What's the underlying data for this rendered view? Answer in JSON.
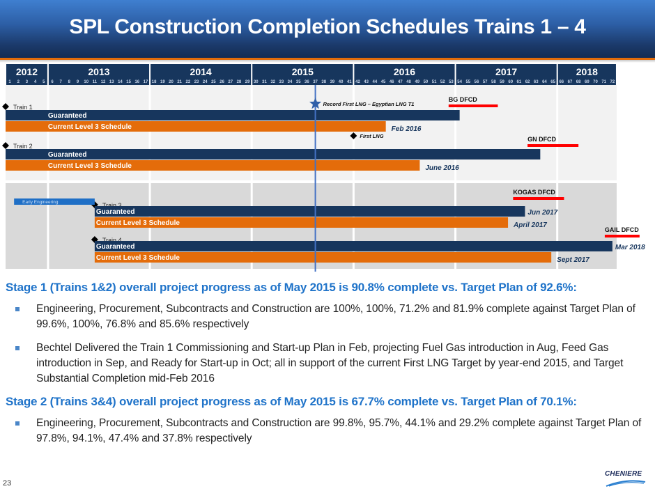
{
  "header": {
    "title": "SPL Construction Completion Schedules Trains 1 – 4"
  },
  "chart_data": {
    "type": "gantt",
    "title": "SPL Construction Completion Schedules Trains 1 – 4",
    "timeline": {
      "month_range": [
        1,
        72
      ],
      "years": [
        {
          "label": "2012",
          "start": 1,
          "end": 5
        },
        {
          "label": "2013",
          "start": 6,
          "end": 17
        },
        {
          "label": "2014",
          "start": 18,
          "end": 29
        },
        {
          "label": "2015",
          "start": 30,
          "end": 41
        },
        {
          "label": "2016",
          "start": 42,
          "end": 53
        },
        {
          "label": "2017",
          "start": 54,
          "end": 65
        },
        {
          "label": "2018",
          "start": 66,
          "end": 72
        }
      ]
    },
    "current_marker": {
      "month": 37.5,
      "label": "Record First LNG – Egyptian LNG T1",
      "icon": "star"
    },
    "sections": [
      {
        "name": "Stage 1",
        "shade": "light",
        "month_start": 1,
        "month_end": 72
      },
      {
        "name": "Stage 2",
        "shade": "dark",
        "month_start": 1,
        "month_end": 72
      }
    ],
    "trains": [
      {
        "name": "Train 1",
        "start": 1,
        "guaranteed": {
          "label": "Guaranteed",
          "end": 54.5
        },
        "current": {
          "label": "Current Level 3 Schedule",
          "end": 45.8,
          "end_label": "Feb 2016"
        },
        "dfcd": {
          "label": "BG DFCD",
          "start": 53.2,
          "end": 59
        }
      },
      {
        "name": "Train 2",
        "start": 1,
        "guaranteed": {
          "label": "Guaranteed",
          "end": 64
        },
        "current": {
          "label": "Current Level 3 Schedule",
          "end": 49.8,
          "end_label": "June 2016"
        },
        "milestone": {
          "label": "First LNG",
          "month": 42
        },
        "dfcd": {
          "label": "GN DFCD",
          "start": 62.5,
          "end": 68.5
        }
      },
      {
        "name": "Train 3",
        "start": 11.5,
        "early_engineering": {
          "label": "Early Engineering",
          "start": 2,
          "end": 11.5
        },
        "guaranteed": {
          "label": "Guaranteed",
          "end": 62.2,
          "end_label": "Jun 2017"
        },
        "current": {
          "label": "Current Level 3 Schedule",
          "end": 60.2,
          "end_label": "April 2017"
        },
        "dfcd": {
          "label": "KOGAS DFCD",
          "start": 60.8,
          "end": 66.8
        }
      },
      {
        "name": "Train 4",
        "start": 11.5,
        "guaranteed": {
          "label": "Guaranteed",
          "end": 72.5,
          "end_label": "Mar 2018"
        },
        "current": {
          "label": "Current Level 3 Schedule",
          "end": 65.3,
          "end_label": "Sept 2017"
        },
        "dfcd": {
          "label": "GAIL DFCD",
          "start": 71.6,
          "end": 75.7
        }
      }
    ],
    "colors": {
      "guaranteed": "#17365d",
      "current": "#e46c0a",
      "dfcd": "#ff0000",
      "early": "#1f6fc6",
      "today_line": "#4472c4",
      "header": "#17365d"
    }
  },
  "body": {
    "stage1": {
      "heading": "Stage 1 (Trains 1&2) overall project progress as of May 2015 is 90.8% complete vs. Target Plan of 92.6%:",
      "bullets": [
        "Engineering, Procurement, Subcontracts and Construction are 100%, 100%, 71.2% and 81.9% complete against Target Plan of 99.6%, 100%, 76.8% and 85.6% respectively",
        "Bechtel Delivered the Train 1 Commissioning  and Start-up Plan in Feb, projecting Fuel Gas introduction in Aug, Feed Gas introduction in Sep, and Ready for Start-up in Oct; all in support of the current First LNG Target by year-end 2015, and Target Substantial Completion mid-Feb 2016"
      ]
    },
    "stage2": {
      "heading": "Stage 2 (Trains 3&4) overall project progress as of May 2015 is 67.7% complete vs. Target Plan of 70.1%:",
      "bullets": [
        "Engineering, Procurement, Subcontracts and Construction are 99.8%, 95.7%, 44.1% and 29.2% complete against Target Plan of 97.8%, 94.1%, 47.4% and 37.8% respectively"
      ]
    }
  },
  "footer": {
    "page_number": "23",
    "logo_text": "CHENIERE"
  }
}
